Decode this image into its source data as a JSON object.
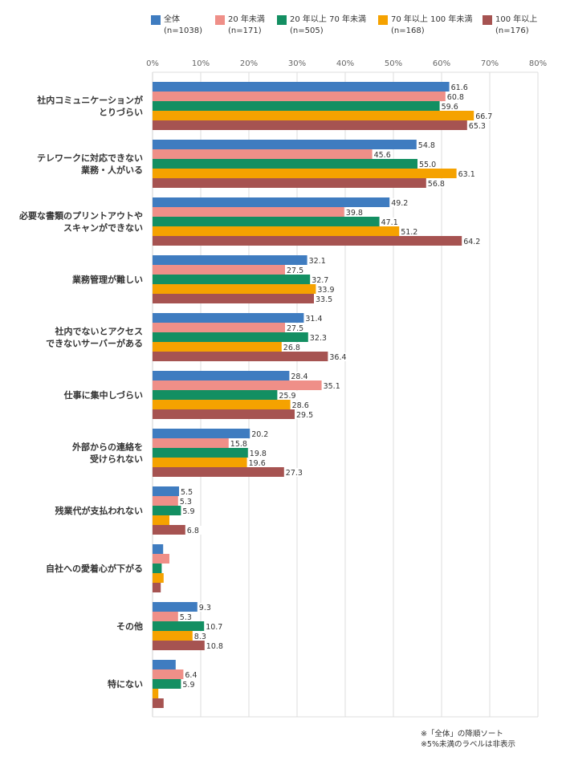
{
  "chart_data": {
    "type": "bar",
    "orientation": "horizontal",
    "title": "",
    "xlabel": "",
    "ylabel": "",
    "xlim": [
      0,
      80
    ],
    "x_ticks": [
      "0%",
      "10%",
      "20%",
      "30%",
      "40%",
      "50%",
      "60%",
      "70%",
      "80%"
    ],
    "grid": true,
    "legend_position": "top",
    "label_threshold": 5,
    "categories": [
      [
        "社内コミュニケーションが",
        "とりづらい"
      ],
      [
        "テレワークに対応できない",
        "業務・人がいる"
      ],
      [
        "必要な書類のプリントアウトや",
        "スキャンができない"
      ],
      [
        "業務管理が難しい"
      ],
      [
        "社内でないとアクセス",
        "できないサーバーがある"
      ],
      [
        "仕事に集中しづらい"
      ],
      [
        "外部からの連絡を",
        "受けられない"
      ],
      [
        "残業代が支払われない"
      ],
      [
        "自社への愛着心が下がる"
      ],
      [
        "その他"
      ],
      [
        "特にない"
      ]
    ],
    "series": [
      {
        "name": "全体",
        "n": "(n=1038)",
        "color": "#3f7cc0",
        "values": [
          61.6,
          54.8,
          49.2,
          32.1,
          31.4,
          28.4,
          20.2,
          5.5,
          2.2,
          9.3,
          4.8
        ]
      },
      {
        "name": "20 年未満",
        "n": "(n=171)",
        "color": "#ef8f88",
        "values": [
          60.8,
          45.6,
          39.8,
          27.5,
          27.5,
          35.1,
          15.8,
          5.3,
          3.5,
          5.3,
          6.4
        ]
      },
      {
        "name": "20 年以上 70 年未満",
        "n": "(n=505)",
        "color": "#138f62",
        "values": [
          59.6,
          55.0,
          47.1,
          32.7,
          32.3,
          25.9,
          19.8,
          5.9,
          1.9,
          10.7,
          5.9
        ]
      },
      {
        "name": "70 年以上 100 年未満",
        "n": "(n=168)",
        "color": "#f5a200",
        "values": [
          66.7,
          63.1,
          51.2,
          33.9,
          26.8,
          28.6,
          19.6,
          3.5,
          2.3,
          8.3,
          1.2
        ]
      },
      {
        "name": "100 年以上",
        "n": "(n=176)",
        "color": "#a65351",
        "values": [
          65.3,
          56.8,
          64.2,
          33.5,
          36.4,
          29.5,
          27.3,
          6.8,
          1.7,
          10.8,
          2.3
        ]
      }
    ],
    "notes": [
      "※「全体」の降順ソート",
      "※5%未満のラベルは非表示"
    ]
  }
}
